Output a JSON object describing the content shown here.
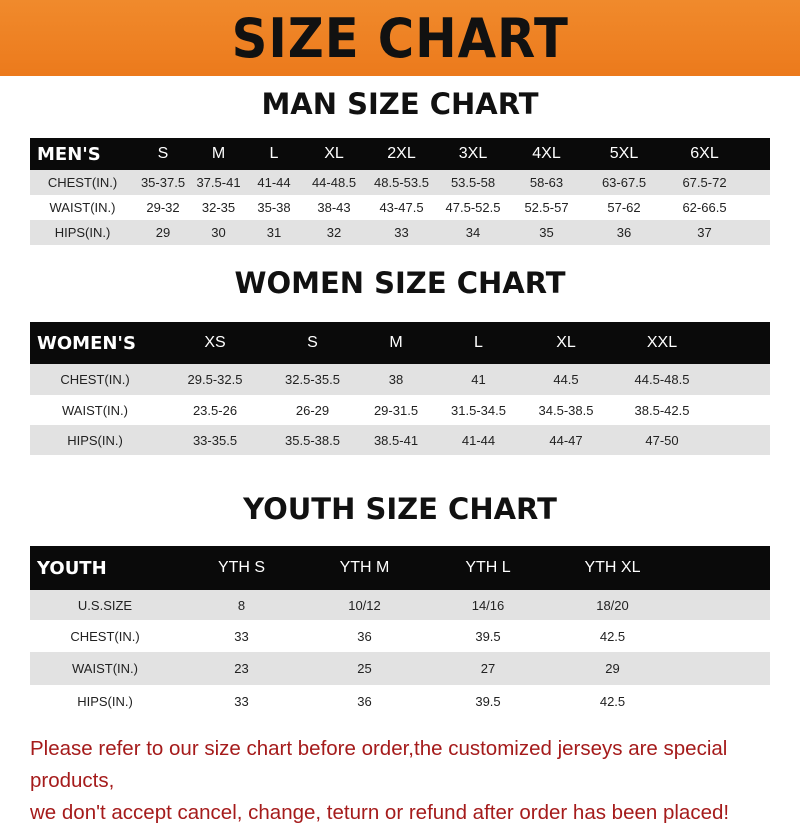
{
  "banner_title": "SIZE CHART",
  "colors": {
    "banner": "#ec7a1c",
    "header_row": "#0a0a0a",
    "note_text": "#a51b1b"
  },
  "men": {
    "title": "MAN SIZE CHART",
    "header": [
      "MEN'S",
      "S",
      "M",
      "L",
      "XL",
      "2XL",
      "3XL",
      "4XL",
      "5XL",
      "6XL"
    ],
    "rows": [
      [
        "CHEST(IN.)",
        "35-37.5",
        "37.5-41",
        "41-44",
        "44-48.5",
        "48.5-53.5",
        "53.5-58",
        "58-63",
        "63-67.5",
        "67.5-72"
      ],
      [
        "WAIST(IN.)",
        "29-32",
        "32-35",
        "35-38",
        "38-43",
        "43-47.5",
        "47.5-52.5",
        "52.5-57",
        "57-62",
        "62-66.5"
      ],
      [
        "HIPS(IN.)",
        "29",
        "30",
        "31",
        "32",
        "33",
        "34",
        "35",
        "36",
        "37"
      ]
    ]
  },
  "women": {
    "title": "WOMEN SIZE CHART",
    "header": [
      "WOMEN'S",
      "XS",
      "S",
      "M",
      "L",
      "XL",
      "XXL"
    ],
    "rows": [
      [
        "CHEST(IN.)",
        "29.5-32.5",
        "32.5-35.5",
        "38",
        "41",
        "44.5",
        "44.5-48.5"
      ],
      [
        "WAIST(IN.)",
        "23.5-26",
        "26-29",
        "29-31.5",
        "31.5-34.5",
        "34.5-38.5",
        "38.5-42.5"
      ],
      [
        "HIPS(IN.)",
        "33-35.5",
        "35.5-38.5",
        "38.5-41",
        "41-44",
        "44-47",
        "47-50"
      ]
    ]
  },
  "youth": {
    "title": "YOUTH SIZE CHART",
    "header": [
      "YOUTH",
      "YTH S",
      "YTH M",
      "YTH L",
      "YTH XL"
    ],
    "rows": [
      [
        "U.S.SIZE",
        "8",
        "10/12",
        "14/16",
        "18/20"
      ],
      [
        "CHEST(IN.)",
        "33",
        "36",
        "39.5",
        "42.5"
      ],
      [
        "WAIST(IN.)",
        "23",
        "25",
        "27",
        "29"
      ],
      [
        "HIPS(IN.)",
        "33",
        "36",
        "39.5",
        "42.5"
      ]
    ]
  },
  "note": {
    "line1": "Please refer to our size chart before order,the customized jerseys are special products,",
    "line2": "we don't accept cancel, change, teturn or refund after order has been placed!"
  }
}
